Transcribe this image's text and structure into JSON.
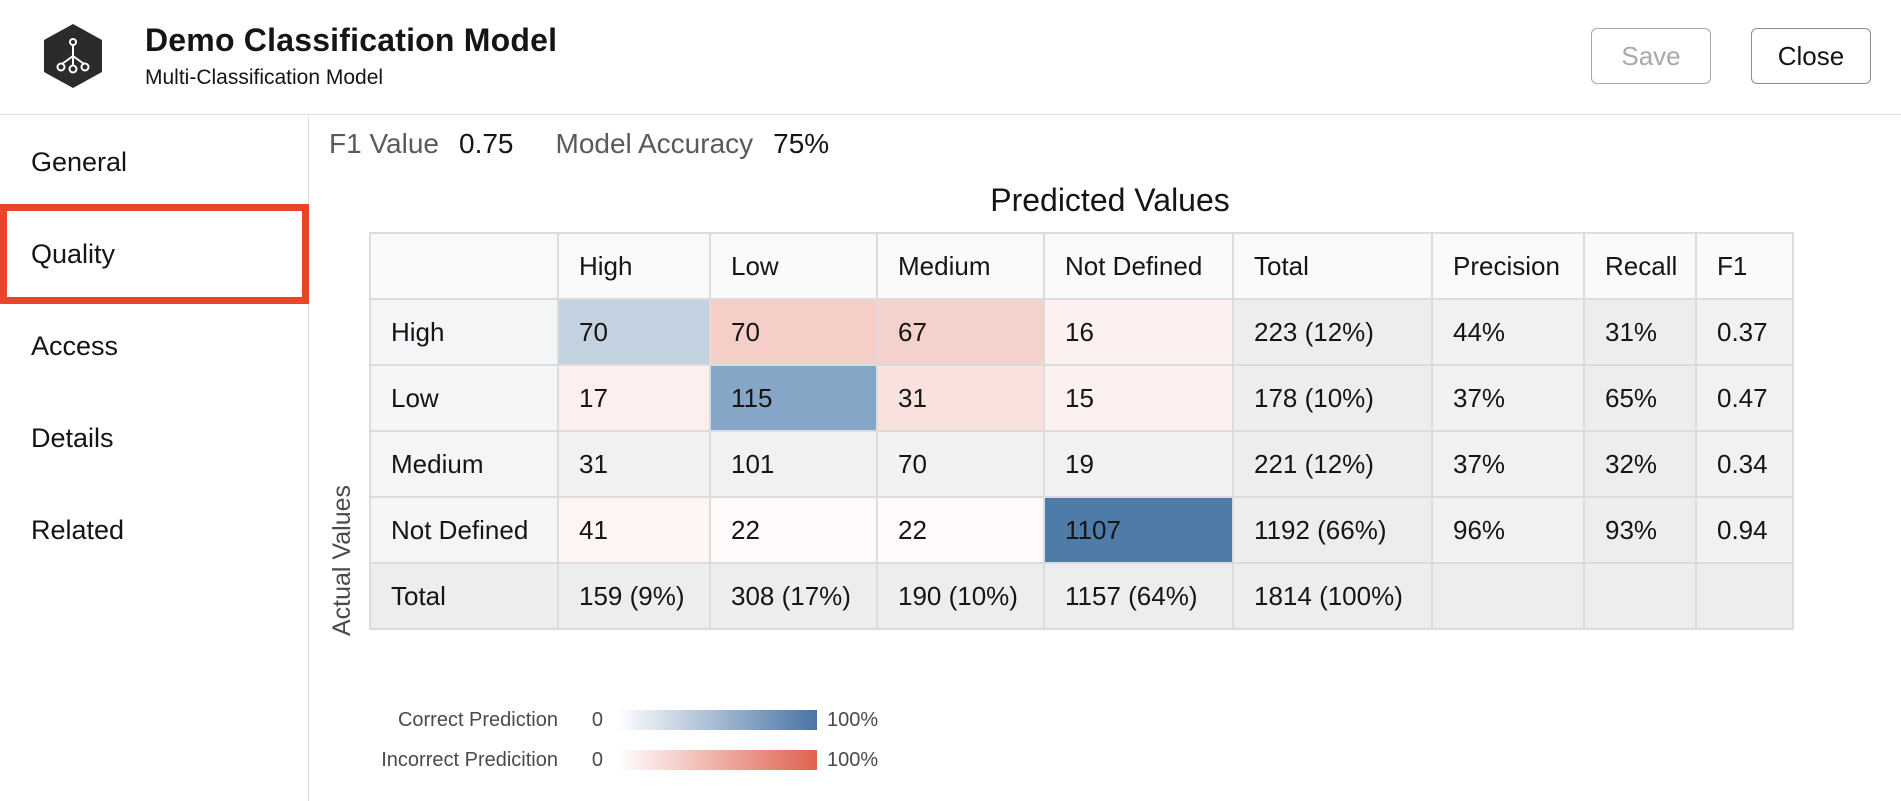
{
  "header": {
    "title": "Demo Classification Model",
    "subtitle": "Multi-Classification Model",
    "save_label": "Save",
    "close_label": "Close",
    "icon": "classification-model-icon"
  },
  "sidebar": {
    "items": [
      {
        "label": "General",
        "active": false
      },
      {
        "label": "Quality",
        "active": true
      },
      {
        "label": "Access",
        "active": false
      },
      {
        "label": "Details",
        "active": false
      },
      {
        "label": "Related",
        "active": false
      }
    ],
    "highlight_color": "#e8452c"
  },
  "metrics": {
    "f1_label": "F1 Value",
    "f1_value": "0.75",
    "accuracy_label": "Model Accuracy",
    "accuracy_value": "75%"
  },
  "matrix": {
    "predicted_title": "Predicted Values",
    "actual_title": "Actual Values",
    "columns": [
      "High",
      "Low",
      "Medium",
      "Not Defined",
      "Total",
      "Precision",
      "Recall",
      "F1"
    ],
    "rows": [
      {
        "label": "High",
        "cells": [
          "70",
          "70",
          "67",
          "16"
        ],
        "total": "223 (12%)",
        "precision": "44%",
        "recall": "31%",
        "f1": "0.37"
      },
      {
        "label": "Low",
        "cells": [
          "17",
          "115",
          "31",
          "15"
        ],
        "total": "178 (10%)",
        "precision": "37%",
        "recall": "65%",
        "f1": "0.47"
      },
      {
        "label": "Medium",
        "cells": [
          "31",
          "101",
          "70",
          "19"
        ],
        "total": "221 (12%)",
        "precision": "37%",
        "recall": "32%",
        "f1": "0.34"
      },
      {
        "label": "Not Defined",
        "cells": [
          "41",
          "22",
          "22",
          "1107"
        ],
        "total": "1192 (66%)",
        "precision": "96%",
        "recall": "93%",
        "f1": "0.94"
      }
    ],
    "totals_row": {
      "label": "Total",
      "cells": [
        "159 (9%)",
        "308 (17%)",
        "190 (10%)",
        "1157 (64%)",
        "1814 (100%)"
      ]
    },
    "colors": {
      "correct": "#4a74a6",
      "incorrect": "#e0614f"
    }
  },
  "legend": {
    "correct_label": "Correct Prediction",
    "incorrect_label": "Incorrect Predicition",
    "min": "0",
    "max": "100%"
  }
}
